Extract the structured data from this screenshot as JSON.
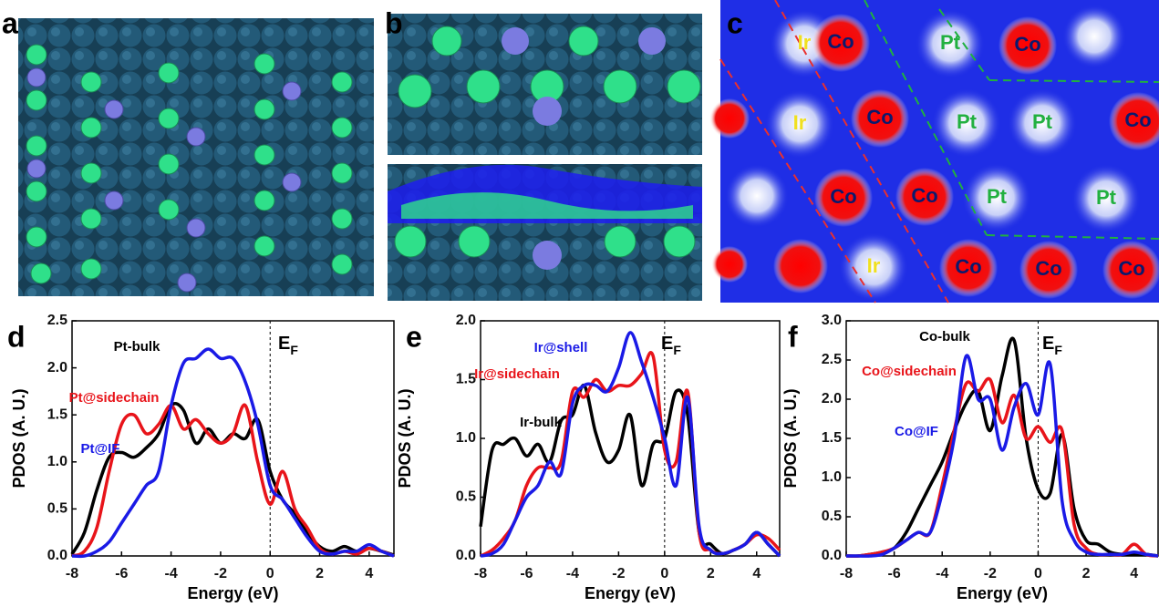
{
  "top_panels": {
    "labels": [
      "a",
      "b",
      "c"
    ],
    "map_labels": [
      "Ir",
      "Co",
      "Pt",
      "Co",
      "Ir",
      "Co",
      "Pt",
      "Pt",
      "Co",
      "Co",
      "Co",
      "Pt",
      "Pt",
      "Ir",
      "Co",
      "Co",
      "Co"
    ]
  },
  "chart_data": [
    {
      "type": "line",
      "panel_label": "d",
      "x_label": "Energy (eV)",
      "y_label": "PDOS (A. U.)",
      "fermi_label": "E",
      "fermi_subscript": "F",
      "x": [
        -8,
        -7.5,
        -7,
        -6.5,
        -6,
        -5.5,
        -5,
        -4.5,
        -4,
        -3.5,
        -3,
        -2.5,
        -2,
        -1.5,
        -1,
        -0.5,
        0,
        0.5,
        1,
        1.5,
        2,
        2.5,
        3,
        3.5,
        4,
        4.5,
        5
      ],
      "xlim": [
        -8,
        5
      ],
      "xticks": [
        -8,
        -6,
        -4,
        -2,
        0,
        2,
        4
      ],
      "ylim": [
        0,
        2.5
      ],
      "yticks": [
        {
          "value": 0,
          "label": "0.0"
        },
        0.5,
        {
          "value": 1,
          "label": "1.0"
        },
        1.5,
        {
          "value": 2,
          "label": "2.0"
        },
        2.5
      ],
      "series": [
        {
          "name": "Pt-bulk",
          "color": "#000000",
          "values": [
            0.02,
            0.25,
            0.7,
            1.05,
            1.1,
            1.05,
            1.15,
            1.3,
            1.6,
            1.55,
            1.2,
            1.35,
            1.2,
            1.3,
            1.25,
            1.45,
            0.9,
            0.6,
            0.45,
            0.25,
            0.1,
            0.05,
            0.1,
            0.05,
            0.08,
            0.05,
            0.01
          ]
        },
        {
          "name": "Pt@sidechain",
          "color": "#e8141a",
          "values": [
            0,
            0.05,
            0.3,
            0.9,
            1.4,
            1.5,
            1.3,
            1.4,
            1.6,
            1.35,
            1.45,
            1.3,
            1.2,
            1.3,
            1.6,
            1.0,
            0.55,
            0.9,
            0.5,
            0.3,
            0.08,
            0.02,
            0.05,
            0.02,
            0.08,
            0.05,
            0
          ]
        },
        {
          "name": "Pt@IF",
          "color": "#1a1ae6",
          "values": [
            0,
            0,
            0.05,
            0.15,
            0.35,
            0.55,
            0.75,
            0.9,
            1.6,
            2.05,
            2.1,
            2.2,
            2.1,
            2.1,
            1.85,
            1.4,
            0.75,
            0.6,
            0.4,
            0.2,
            0.05,
            0.02,
            0.05,
            0.05,
            0.12,
            0.05,
            0
          ]
        }
      ]
    },
    {
      "type": "line",
      "panel_label": "e",
      "x_label": "Energy (eV)",
      "y_label": "PDOS (A. U.)",
      "fermi_label": "E",
      "fermi_subscript": "F",
      "x": [
        -8,
        -7.5,
        -7,
        -6.5,
        -6,
        -5.5,
        -5,
        -4.5,
        -4,
        -3.5,
        -3,
        -2.5,
        -2,
        -1.5,
        -1,
        -0.5,
        0,
        0.5,
        1,
        1.5,
        2,
        2.5,
        3,
        3.5,
        4,
        4.5,
        5
      ],
      "xlim": [
        -8,
        5
      ],
      "xticks": [
        -8,
        -6,
        -4,
        -2,
        0,
        2,
        4
      ],
      "ylim": [
        0,
        2
      ],
      "yticks": [
        {
          "value": 0,
          "label": "0.0"
        },
        0.5,
        {
          "value": 1,
          "label": "1.0"
        },
        1.5,
        {
          "value": 2,
          "label": "2.0"
        }
      ],
      "series": [
        {
          "name": "Ir-bulk",
          "color": "#000000",
          "values": [
            0.25,
            0.9,
            0.95,
            1.0,
            0.85,
            0.95,
            0.8,
            1.15,
            1.2,
            1.45,
            1.05,
            0.8,
            0.9,
            1.2,
            0.6,
            0.95,
            1.0,
            1.4,
            1.2,
            0.2,
            0.1,
            0.02,
            0.05,
            0.1,
            0.2,
            0.1,
            0
          ]
        },
        {
          "name": "Ir@sidechain",
          "color": "#e8141a",
          "values": [
            0,
            0.05,
            0.15,
            0.3,
            0.6,
            0.75,
            0.75,
            0.8,
            1.4,
            1.35,
            1.5,
            1.4,
            1.45,
            1.45,
            1.55,
            1.7,
            0.9,
            0.8,
            1.4,
            0.2,
            0.05,
            0.02,
            0.05,
            0.1,
            0.18,
            0.15,
            0.05
          ]
        },
        {
          "name": "Ir@shell",
          "color": "#1a1ae6",
          "values": [
            0,
            0.02,
            0.1,
            0.3,
            0.5,
            0.6,
            0.8,
            0.7,
            1.3,
            1.45,
            1.45,
            1.4,
            1.6,
            1.9,
            1.65,
            1.35,
            1.0,
            0.6,
            1.35,
            0.25,
            0.05,
            0.02,
            0.05,
            0.1,
            0.2,
            0.1,
            0
          ]
        }
      ]
    },
    {
      "type": "line",
      "panel_label": "f",
      "x_label": "Energy (eV)",
      "y_label": "PDOS (A. U.)",
      "fermi_label": "E",
      "fermi_subscript": "F",
      "x": [
        -8,
        -7.5,
        -7,
        -6.5,
        -6,
        -5.5,
        -5,
        -4.5,
        -4,
        -3.5,
        -3,
        -2.5,
        -2,
        -1.5,
        -1,
        -0.5,
        0,
        0.5,
        1,
        1.5,
        2,
        2.5,
        3,
        3.5,
        4,
        4.5,
        5
      ],
      "xlim": [
        -8,
        5
      ],
      "xticks": [
        -8,
        -6,
        -4,
        -2,
        0,
        2,
        4
      ],
      "ylim": [
        0,
        3
      ],
      "yticks": [
        {
          "value": 0,
          "label": "0.0"
        },
        0.5,
        {
          "value": 1,
          "label": "1.0"
        },
        1.5,
        {
          "value": 2,
          "label": "2.0"
        },
        2.5,
        {
          "value": 3,
          "label": "3.0"
        }
      ],
      "series": [
        {
          "name": "Co-bulk",
          "color": "#000000",
          "values": [
            0,
            0,
            0.02,
            0.05,
            0.1,
            0.3,
            0.6,
            0.9,
            1.2,
            1.6,
            1.95,
            2.1,
            1.6,
            2.3,
            2.75,
            1.5,
            0.85,
            0.8,
            1.55,
            0.6,
            0.2,
            0.15,
            0.05,
            0.02,
            0.02,
            0.02,
            0
          ]
        },
        {
          "name": "Co@sidechain",
          "color": "#e8141a",
          "values": [
            0,
            0,
            0.02,
            0.05,
            0.1,
            0.2,
            0.3,
            0.3,
            0.9,
            1.6,
            2.2,
            2.1,
            2.25,
            1.7,
            2.05,
            1.5,
            1.65,
            1.45,
            1.6,
            0.4,
            0.1,
            0.02,
            0.02,
            0.02,
            0.15,
            0.02,
            0
          ]
        },
        {
          "name": "Co@IF",
          "color": "#1a1ae6",
          "values": [
            0,
            0,
            0,
            0.02,
            0.1,
            0.2,
            0.3,
            0.3,
            0.8,
            1.5,
            2.55,
            2.0,
            2.0,
            1.35,
            1.9,
            2.2,
            1.8,
            2.45,
            0.7,
            0.2,
            0.05,
            0.02,
            0.02,
            0.02,
            0.05,
            0.02,
            0
          ]
        }
      ]
    }
  ]
}
